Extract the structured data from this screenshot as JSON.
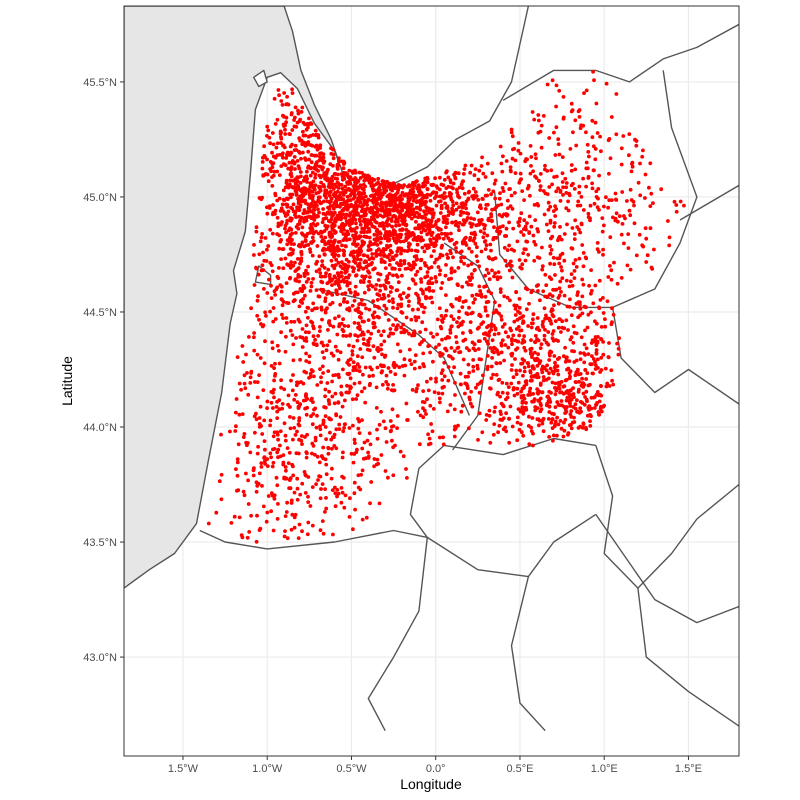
{
  "chart_data": {
    "type": "scatter",
    "title": "",
    "xlabel": "Longitude",
    "ylabel": "Latitude",
    "x_ticks": [
      {
        "value": -1.5,
        "label": "1.5°W"
      },
      {
        "value": -1.0,
        "label": "1.0°W"
      },
      {
        "value": -0.5,
        "label": "0.5°W"
      },
      {
        "value": 0.0,
        "label": "0.0°"
      },
      {
        "value": 0.5,
        "label": "0.5°E"
      },
      {
        "value": 1.0,
        "label": "1.0°E"
      },
      {
        "value": 1.5,
        "label": "1.5°E"
      }
    ],
    "y_ticks": [
      {
        "value": 43.0,
        "label": "43.0°N"
      },
      {
        "value": 43.5,
        "label": "43.5°N"
      },
      {
        "value": 44.0,
        "label": "44.0°N"
      },
      {
        "value": 44.5,
        "label": "44.5°N"
      },
      {
        "value": 45.0,
        "label": "45.0°N"
      },
      {
        "value": 45.5,
        "label": "45.5°N"
      }
    ],
    "xlim": [
      -1.85,
      1.8
    ],
    "ylim": [
      42.57,
      45.83
    ],
    "grid": true,
    "legend": "none",
    "point_color": "#ff0000",
    "region_fill": "#e6e6e6",
    "region_border": "#555555",
    "highlight_area": [
      [
        -0.9,
        45.53
      ],
      [
        -0.7,
        45.28
      ],
      [
        -0.5,
        45.12
      ],
      [
        -0.2,
        45.05
      ],
      [
        0.1,
        45.12
      ],
      [
        0.35,
        45.2
      ],
      [
        0.65,
        45.5
      ],
      [
        0.95,
        45.55
      ],
      [
        1.2,
        45.38
      ],
      [
        1.35,
        45.1
      ],
      [
        1.5,
        44.97
      ],
      [
        1.35,
        44.7
      ],
      [
        1.05,
        44.6
      ],
      [
        1.12,
        44.3
      ],
      [
        0.95,
        44.0
      ],
      [
        0.7,
        43.92
      ],
      [
        0.3,
        43.9
      ],
      [
        -0.1,
        43.9
      ],
      [
        -0.2,
        43.72
      ],
      [
        -0.3,
        43.55
      ],
      [
        -0.65,
        43.52
      ],
      [
        -1.0,
        43.5
      ],
      [
        -1.25,
        43.5
      ],
      [
        -1.4,
        43.6
      ],
      [
        -1.3,
        43.9
      ],
      [
        -1.18,
        44.3
      ],
      [
        -1.1,
        44.6
      ],
      [
        -1.05,
        45.1
      ],
      [
        -1.0,
        45.4
      ]
    ],
    "landmass": [
      [
        -1.85,
        45.83
      ],
      [
        -1.85,
        43.3
      ],
      [
        -1.7,
        43.38
      ],
      [
        -1.55,
        43.45
      ],
      [
        -1.42,
        43.58
      ],
      [
        -1.35,
        43.85
      ],
      [
        -1.27,
        44.15
      ],
      [
        -1.22,
        44.45
      ],
      [
        -1.18,
        44.58
      ],
      [
        -1.2,
        44.68
      ],
      [
        -1.13,
        44.85
      ],
      [
        -1.1,
        45.1
      ],
      [
        -1.07,
        45.38
      ],
      [
        -1.0,
        45.52
      ],
      [
        -0.92,
        45.54
      ],
      [
        -0.82,
        45.47
      ],
      [
        -0.72,
        45.32
      ],
      [
        -0.6,
        45.2
      ],
      [
        -0.55,
        45.1
      ],
      [
        -0.62,
        45.25
      ],
      [
        -0.72,
        45.4
      ],
      [
        -0.8,
        45.55
      ],
      [
        -0.85,
        45.72
      ],
      [
        -0.9,
        45.83
      ]
    ],
    "borders": [
      [
        [
          -0.35,
          45.02
        ],
        [
          -0.05,
          45.13
        ],
        [
          0.12,
          45.25
        ],
        [
          0.32,
          45.33
        ],
        [
          0.45,
          45.5
        ],
        [
          0.55,
          45.83
        ]
      ],
      [
        [
          0.4,
          45.42
        ],
        [
          0.7,
          45.55
        ],
        [
          0.95,
          45.55
        ],
        [
          1.15,
          45.5
        ],
        [
          1.35,
          45.6
        ],
        [
          1.55,
          45.65
        ],
        [
          1.8,
          45.75
        ]
      ],
      [
        [
          1.35,
          45.55
        ],
        [
          1.4,
          45.3
        ],
        [
          1.55,
          45.0
        ],
        [
          1.45,
          44.8
        ],
        [
          1.3,
          44.6
        ],
        [
          1.05,
          44.52
        ],
        [
          1.1,
          44.3
        ],
        [
          1.3,
          44.15
        ],
        [
          1.5,
          44.25
        ],
        [
          1.8,
          44.1
        ]
      ],
      [
        [
          1.45,
          44.9
        ],
        [
          1.8,
          45.05
        ]
      ],
      [
        [
          0.95,
          43.92
        ],
        [
          1.05,
          43.7
        ],
        [
          1.0,
          43.45
        ],
        [
          1.2,
          43.3
        ],
        [
          1.4,
          43.45
        ],
        [
          1.55,
          43.6
        ],
        [
          1.8,
          43.75
        ]
      ],
      [
        [
          0.95,
          43.92
        ],
        [
          0.7,
          43.95
        ],
        [
          0.4,
          43.88
        ],
        [
          0.05,
          43.92
        ],
        [
          -0.1,
          43.82
        ],
        [
          -0.15,
          43.62
        ],
        [
          -0.05,
          43.52
        ],
        [
          0.25,
          43.38
        ],
        [
          0.55,
          43.35
        ],
        [
          0.7,
          43.5
        ],
        [
          0.95,
          43.62
        ]
      ],
      [
        [
          -0.05,
          43.52
        ],
        [
          -0.25,
          43.55
        ],
        [
          -0.6,
          43.5
        ],
        [
          -1.0,
          43.47
        ],
        [
          -1.25,
          43.5
        ],
        [
          -1.4,
          43.55
        ]
      ],
      [
        [
          -0.05,
          43.52
        ],
        [
          -0.1,
          43.2
        ],
        [
          -0.25,
          43.0
        ],
        [
          -0.4,
          42.82
        ],
        [
          -0.3,
          42.68
        ]
      ],
      [
        [
          0.55,
          43.35
        ],
        [
          0.45,
          43.05
        ],
        [
          0.5,
          42.8
        ],
        [
          0.65,
          42.68
        ]
      ],
      [
        [
          0.95,
          43.62
        ],
        [
          1.3,
          43.25
        ],
        [
          1.55,
          43.15
        ],
        [
          1.8,
          43.22
        ]
      ],
      [
        [
          1.2,
          43.3
        ],
        [
          1.25,
          43.0
        ],
        [
          1.5,
          42.85
        ],
        [
          1.8,
          42.7
        ]
      ],
      [
        [
          0.35,
          45.02
        ],
        [
          0.38,
          44.75
        ],
        [
          0.55,
          44.6
        ],
        [
          0.8,
          44.52
        ],
        [
          1.05,
          44.52
        ]
      ],
      [
        [
          0.05,
          44.8
        ],
        [
          0.25,
          44.7
        ],
        [
          0.35,
          44.55
        ],
        [
          0.3,
          44.3
        ],
        [
          0.25,
          44.05
        ],
        [
          0.1,
          43.9
        ]
      ],
      [
        [
          -0.7,
          44.6
        ],
        [
          -0.4,
          44.55
        ],
        [
          -0.1,
          44.4
        ],
        [
          0.05,
          44.3
        ],
        [
          0.2,
          44.05
        ]
      ]
    ],
    "islands": [
      [
        [
          -1.05,
          44.7
        ],
        [
          -0.98,
          44.66
        ],
        [
          -0.98,
          44.62
        ],
        [
          -1.07,
          44.63
        ]
      ],
      [
        [
          -1.08,
          45.52
        ],
        [
          -1.02,
          45.55
        ],
        [
          -1.0,
          45.5
        ],
        [
          -1.05,
          45.48
        ]
      ]
    ],
    "clusters": [
      {
        "lon": -0.55,
        "lat": 44.88,
        "sd_lon": 0.3,
        "sd_lat": 0.2,
        "n": 900
      },
      {
        "lon": -0.3,
        "lat": 45.05,
        "sd_lon": 0.22,
        "sd_lat": 0.14,
        "n": 450
      },
      {
        "lon": -0.1,
        "lat": 44.92,
        "sd_lon": 0.25,
        "sd_lat": 0.14,
        "n": 350
      },
      {
        "lon": -0.82,
        "lat": 45.2,
        "sd_lon": 0.12,
        "sd_lat": 0.22,
        "n": 260
      },
      {
        "lon": 0.5,
        "lat": 44.35,
        "sd_lon": 0.4,
        "sd_lat": 0.18,
        "n": 550
      },
      {
        "lon": 0.72,
        "lat": 44.1,
        "sd_lon": 0.22,
        "sd_lat": 0.12,
        "n": 300
      },
      {
        "lon": 0.7,
        "lat": 44.95,
        "sd_lon": 0.4,
        "sd_lat": 0.28,
        "n": 550
      },
      {
        "lon": -0.5,
        "lat": 44.4,
        "sd_lon": 0.42,
        "sd_lat": 0.28,
        "n": 650
      },
      {
        "lon": -0.8,
        "lat": 43.85,
        "sd_lon": 0.28,
        "sd_lat": 0.22,
        "n": 350
      }
    ]
  }
}
